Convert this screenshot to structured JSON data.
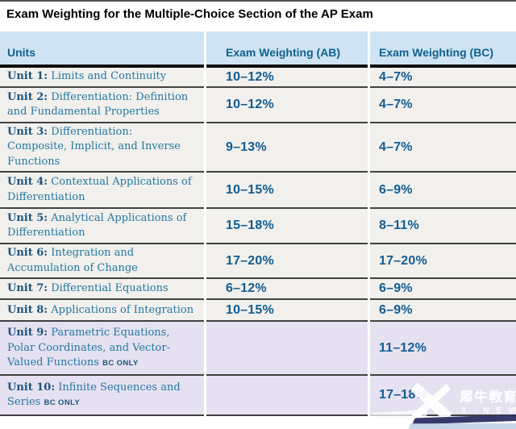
{
  "title": "Exam Weighting for the Multiple-Choice Section of the AP Exam",
  "table": {
    "headers": [
      "Units",
      "Exam Weighting (AB)",
      "Exam Weighting (BC)"
    ],
    "rows": [
      {
        "unit": "Unit 1:",
        "name": "Limits and Continuity",
        "ab": "10–12%",
        "bc": "4–7%"
      },
      {
        "unit": "Unit 2:",
        "name": "Differentiation: Definition and Fundamental Properties",
        "ab": "10–12%",
        "bc": "4–7%"
      },
      {
        "unit": "Unit 3:",
        "name": "Differentiation: Composite, Implicit, and Inverse Functions",
        "ab": "9–13%",
        "bc": "4–7%"
      },
      {
        "unit": "Unit 4:",
        "name": "Contextual Applications of Differentiation",
        "ab": "10–15%",
        "bc": "6–9%"
      },
      {
        "unit": "Unit 5:",
        "name": "Analytical Applications of Differentiation",
        "ab": "15–18%",
        "bc": "8–11%"
      },
      {
        "unit": "Unit 6:",
        "name": "Integration and Accumulation of Change",
        "ab": "17–20%",
        "bc": "17–20%"
      },
      {
        "unit": "Unit 7:",
        "name": "Differential Equations",
        "ab": "6–12%",
        "bc": "6–9%"
      },
      {
        "unit": "Unit 8:",
        "name": "Applications of Integration",
        "ab": "10–15%",
        "bc": "6–9%"
      },
      {
        "unit": "Unit 9:",
        "name": "Parametric Equations, Polar Coordinates, and Vector-Valued Functions",
        "tag": "BC ONLY",
        "ab": "",
        "bc": "11–12%"
      },
      {
        "unit": "Unit 10:",
        "name": "Infinite Sequences and Series",
        "tag": "BC ONLY",
        "ab": "",
        "bc": "17–18%"
      }
    ]
  },
  "colors": {
    "header_bg": "#cfe3f2",
    "row_bg": "#f1f0ed",
    "bc_only_row_bg": "#e6e1f0",
    "unit_label_text": "#1a5480",
    "unit_name_text": "#2377a3",
    "percent_text": "#135c92",
    "header_text": "#10618f",
    "separator": "#414141",
    "watermark_swoosh_navy": "#2b2f63"
  },
  "watermark": {
    "brand": "犀牛教育",
    "sub": "X - N E W"
  }
}
